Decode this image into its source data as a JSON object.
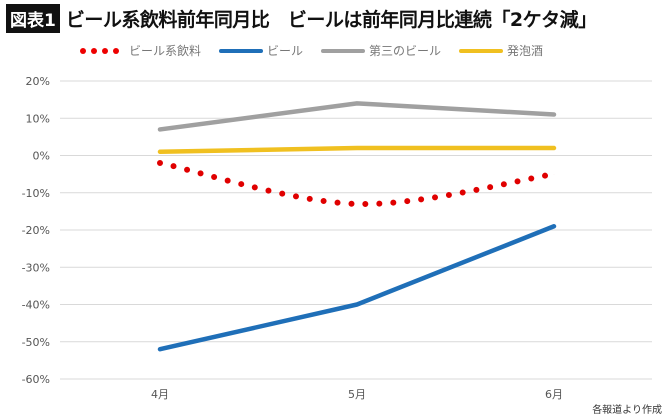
{
  "header": {
    "badge": "図表1",
    "title": "ビール系飲料前年同月比　ビールは前年同月比連続「2ケタ減」"
  },
  "source": "各報道より作成",
  "chart_data": {
    "type": "line",
    "categories": [
      "4月",
      "5月",
      "6月"
    ],
    "ylim": [
      -60,
      20
    ],
    "yticks": [
      20,
      10,
      0,
      -10,
      -20,
      -30,
      -40,
      -50,
      -60
    ],
    "ytick_labels": [
      "20%",
      "10%",
      "0%",
      "-10%",
      "-20%",
      "-30%",
      "-40%",
      "-50%",
      "-60%"
    ],
    "grid": true,
    "legend_position": "top",
    "series": [
      {
        "name": "ビール系飲料",
        "values": [
          -2,
          -13,
          -5
        ],
        "color": "#e00000",
        "style": "dotted",
        "smooth": true
      },
      {
        "name": "ビール",
        "values": [
          -52,
          -40,
          -19
        ],
        "color": "#1f6fb8",
        "style": "solid"
      },
      {
        "name": "第三のビール",
        "values": [
          7,
          14,
          11
        ],
        "color": "#a0a0a0",
        "style": "solid"
      },
      {
        "name": "発泡酒",
        "values": [
          1,
          2,
          2
        ],
        "color": "#f0c020",
        "style": "solid"
      }
    ]
  }
}
